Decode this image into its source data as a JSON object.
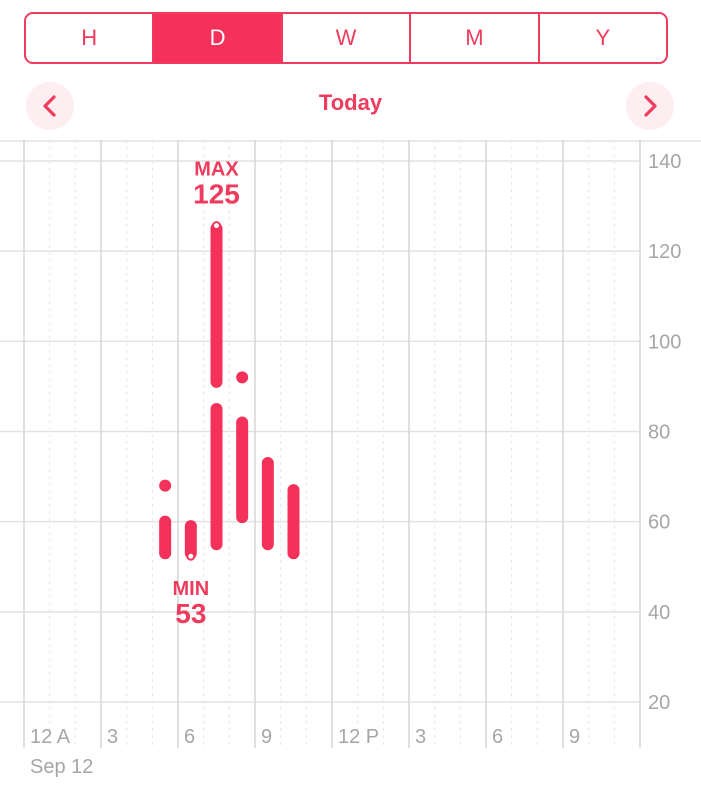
{
  "segments": [
    {
      "label": "H",
      "active": false
    },
    {
      "label": "D",
      "active": true
    },
    {
      "label": "W",
      "active": false
    },
    {
      "label": "M",
      "active": false
    },
    {
      "label": "Y",
      "active": false
    }
  ],
  "nav": {
    "title": "Today",
    "prev_icon": "chevron-left-icon",
    "next_icon": "chevron-right-icon"
  },
  "date_label": "Sep 12",
  "colors": {
    "accent": "#f4315a",
    "grid": "#e2e2e2",
    "label": "#a6a6a6"
  },
  "chart_data": {
    "type": "range-bar",
    "ylim": [
      20,
      140
    ],
    "y_ticks": [
      20,
      40,
      60,
      80,
      100,
      120,
      140
    ],
    "x_tick_labels": [
      "12 A",
      "3",
      "6",
      "9",
      "12 P",
      "3",
      "6",
      "9"
    ],
    "grid": true,
    "series": [
      {
        "hour": 5,
        "ranges": [
          [
            68,
            68
          ],
          [
            53,
            60
          ]
        ]
      },
      {
        "hour": 6,
        "ranges": [
          [
            53,
            59
          ]
        ]
      },
      {
        "hour": 7,
        "ranges": [
          [
            91,
            125
          ],
          [
            55,
            85
          ]
        ]
      },
      {
        "hour": 8,
        "ranges": [
          [
            92,
            92
          ],
          [
            61,
            82
          ]
        ]
      },
      {
        "hour": 9,
        "ranges": [
          [
            55,
            73
          ]
        ]
      },
      {
        "hour": 10,
        "ranges": [
          [
            53,
            67
          ]
        ]
      }
    ],
    "annotations": [
      {
        "caption": "MAX",
        "value": 125,
        "hour": 7
      },
      {
        "caption": "MIN",
        "value": 53,
        "hour": 6
      }
    ]
  }
}
